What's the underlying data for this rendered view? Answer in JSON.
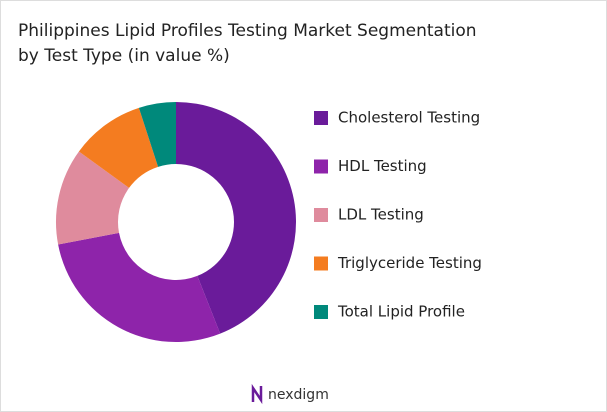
{
  "chart_data": {
    "type": "donut",
    "title": "Philippines Lipid Profiles Testing Market Segmentation by Test Type (in value %)",
    "categories": [
      "Cholesterol Testing",
      "HDL Testing",
      "LDL Testing",
      "Triglyceride Testing",
      "Total Lipid Profile"
    ],
    "values": [
      44,
      28,
      13,
      10,
      5
    ],
    "colors": [
      "#6a1b9a",
      "#8e24aa",
      "#df8b9d",
      "#f47c20",
      "#00897b"
    ],
    "legend": "right"
  },
  "footer": {
    "brand": "nexdigm"
  }
}
